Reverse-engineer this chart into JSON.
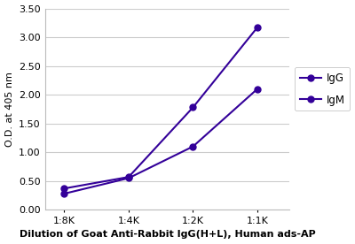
{
  "x_labels": [
    "1:8K",
    "1:4K",
    "1:2K",
    "1:1K"
  ],
  "x_positions": [
    0,
    1,
    2,
    3
  ],
  "IgG_values": [
    0.37,
    0.57,
    1.78,
    3.17
  ],
  "IgM_values": [
    0.28,
    0.55,
    1.1,
    2.1
  ],
  "IgG_color": "#330099",
  "IgM_color": "#330099",
  "ylabel": "O.D. at 405 nm",
  "xlabel": "Dilution of Goat Anti-Rabbit IgG(H+L), Human ads-AP",
  "ylim": [
    0.0,
    3.5
  ],
  "yticks": [
    0.0,
    0.5,
    1.0,
    1.5,
    2.0,
    2.5,
    3.0,
    3.5
  ],
  "legend_IgG": "IgG",
  "legend_IgM": "IgM",
  "background_color": "#ffffff",
  "grid_color": "#cccccc"
}
